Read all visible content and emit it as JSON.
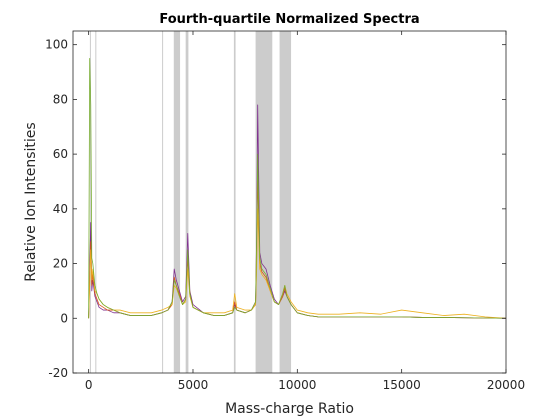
{
  "chart_data": {
    "type": "line",
    "title": "Fourth-quartile Normalized Spectra",
    "xlabel": "Mass-charge Ratio",
    "ylabel": "Relative Ion Intensities",
    "xlim": [
      -750,
      20000
    ],
    "ylim": [
      -20,
      105
    ],
    "xticks": [
      0,
      5000,
      10000,
      15000,
      20000
    ],
    "yticks": [
      -20,
      0,
      20,
      40,
      60,
      80,
      100
    ],
    "grid": false,
    "legend": "none",
    "highlight_regions": [
      [
        60,
        100
      ],
      [
        320,
        360
      ],
      [
        3520,
        3560
      ],
      [
        4080,
        4380
      ],
      [
        4650,
        4780
      ],
      [
        6960,
        7040
      ],
      [
        8000,
        8800
      ],
      [
        9150,
        9700
      ]
    ],
    "highlight_color": "#cccccc",
    "series": [
      {
        "color": "#7e2f8e",
        "x": [
          0,
          50,
          100,
          150,
          200,
          300,
          400,
          500,
          700,
          900,
          1200,
          1500,
          2000,
          2500,
          3000,
          3500,
          3800,
          4000,
          4100,
          4200,
          4350,
          4500,
          4650,
          4750,
          4850,
          5000,
          5500,
          6000,
          6500,
          6900,
          7000,
          7100,
          7500,
          7800,
          8000,
          8050,
          8100,
          8200,
          8300,
          8500,
          8700,
          8900,
          9100,
          9300,
          9400,
          9500,
          9700,
          10000,
          10500,
          11000,
          12000,
          13000,
          14000,
          15000,
          16000,
          17000,
          18000,
          19000,
          20000
        ],
        "y": [
          0,
          18,
          35,
          10,
          14,
          8,
          6,
          4,
          3,
          3,
          2,
          2,
          1,
          1,
          1,
          2,
          3,
          6,
          18,
          14,
          10,
          6,
          8,
          31,
          10,
          5,
          2,
          1,
          1,
          2,
          5,
          3,
          2,
          3,
          6,
          30,
          78,
          24,
          20,
          18,
          12,
          7,
          5,
          8,
          10,
          8,
          5,
          2,
          1,
          0.5,
          0.5,
          0.5,
          0.5,
          0.5,
          0.3,
          0.3,
          0.2,
          0.1,
          0
        ]
      },
      {
        "color": "#d95319",
        "x": [
          0,
          50,
          100,
          150,
          200,
          300,
          400,
          500,
          700,
          900,
          1200,
          1500,
          2000,
          2500,
          3000,
          3500,
          3800,
          4000,
          4100,
          4200,
          4350,
          4500,
          4650,
          4750,
          4850,
          5000,
          5500,
          6000,
          6500,
          6900,
          7000,
          7100,
          7500,
          7800,
          8000,
          8050,
          8100,
          8200,
          8300,
          8500,
          8700,
          8900,
          9100,
          9300,
          9400,
          9500,
          9700,
          10000,
          10500,
          11000,
          12000,
          13000,
          14000,
          15000,
          16000,
          17000,
          18000,
          19000,
          20000
        ],
        "y": [
          0,
          15,
          28,
          12,
          16,
          9,
          7,
          5,
          4,
          3,
          3,
          2,
          1,
          1,
          1,
          2,
          3,
          5,
          15,
          12,
          9,
          5,
          7,
          22,
          9,
          4,
          2,
          1,
          1,
          2,
          6,
          3,
          2,
          3,
          5,
          22,
          52,
          20,
          17,
          15,
          10,
          6,
          5,
          8,
          11,
          8,
          5,
          2,
          1,
          0.5,
          0.5,
          0.5,
          0.5,
          0.5,
          0.3,
          0.3,
          0.2,
          0.1,
          0
        ]
      },
      {
        "color": "#edb120",
        "x": [
          0,
          50,
          100,
          150,
          200,
          300,
          400,
          500,
          700,
          900,
          1200,
          1500,
          2000,
          2500,
          3000,
          3500,
          3800,
          4000,
          4100,
          4200,
          4350,
          4500,
          4650,
          4750,
          4850,
          5000,
          5500,
          6000,
          6500,
          6900,
          7000,
          7100,
          7500,
          7800,
          8000,
          8050,
          8100,
          8200,
          8300,
          8500,
          8700,
          8900,
          9100,
          9300,
          9400,
          9500,
          9700,
          10000,
          10500,
          11000,
          12000,
          13000,
          14000,
          15000,
          16000,
          17000,
          18000,
          19000,
          20000
        ],
        "y": [
          0,
          12,
          25,
          14,
          18,
          10,
          9,
          7,
          5,
          4,
          3,
          3,
          2,
          2,
          2,
          3,
          4,
          5,
          12,
          11,
          8,
          5,
          6,
          18,
          8,
          4,
          2,
          2,
          2,
          3,
          9,
          4,
          3,
          3,
          5,
          18,
          40,
          18,
          16,
          14,
          10,
          6,
          5,
          9,
          12,
          9,
          6,
          3,
          2,
          1.5,
          1.5,
          2,
          1.5,
          3,
          2,
          1,
          1.5,
          0.5,
          0
        ]
      },
      {
        "color": "#77ac30",
        "x": [
          0,
          50,
          100,
          150,
          200,
          300,
          400,
          500,
          700,
          900,
          1200,
          1500,
          2000,
          2500,
          3000,
          3500,
          3800,
          4000,
          4100,
          4200,
          4350,
          4500,
          4650,
          4750,
          4850,
          5000,
          5500,
          6000,
          6500,
          6900,
          7000,
          7100,
          7500,
          7800,
          8000,
          8050,
          8100,
          8200,
          8300,
          8500,
          8700,
          8900,
          9100,
          9300,
          9400,
          9500,
          9700,
          10000,
          10500,
          11000,
          12000,
          13000,
          14000,
          15000,
          16000,
          17000,
          18000,
          19000,
          20000
        ],
        "y": [
          0,
          95,
          78,
          22,
          20,
          12,
          9,
          7,
          5,
          4,
          3,
          2,
          1,
          1,
          1,
          2,
          3,
          6,
          14,
          12,
          8,
          5,
          7,
          25,
          9,
          4,
          2,
          1,
          1,
          2,
          4,
          3,
          2,
          3,
          6,
          28,
          60,
          22,
          18,
          16,
          11,
          6,
          5,
          9,
          12,
          8,
          5,
          2,
          1,
          0.5,
          0.5,
          0.5,
          0.5,
          0.5,
          0.3,
          0.3,
          0.2,
          0.1,
          0
        ]
      }
    ]
  }
}
